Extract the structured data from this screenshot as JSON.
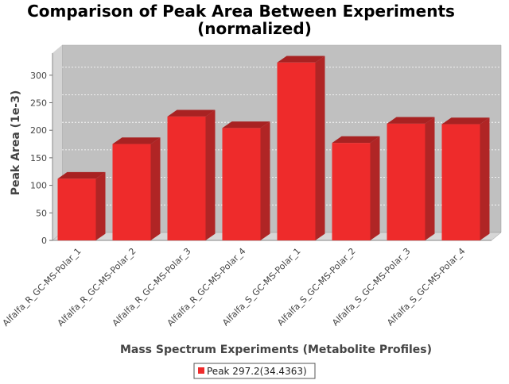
{
  "chart_data": {
    "type": "bar",
    "title": "Comparison of Peak Area Between Experiments",
    "subtitle": "(normalized)",
    "xlabel": "Mass Spectrum Experiments (Metabolite Profiles)",
    "ylabel": "Peak Area (1e-3)",
    "ylim": [
      0,
      340
    ],
    "yticks": [
      0,
      50,
      100,
      150,
      200,
      250,
      300
    ],
    "grid": true,
    "legend_position": "bottom",
    "categories": [
      "Alfalfa_R_GC-MS-Polar_1",
      "Alfalfa_R_GC-MS-Polar_2",
      "Alfalfa_R_GC-MS-Polar_3",
      "Alfalfa_R_GC-MS-Polar_4",
      "Alfalfa_S_GC-MS-Polar_1",
      "Alfalfa_S_GC-MS-Polar_2",
      "Alfalfa_S_GC-MS-Polar_3",
      "Alfalfa_S_GC-MS-Polar_4"
    ],
    "series": [
      {
        "name": "Peak 297.2(34.4363)",
        "color": "#ee2b2b",
        "values": [
          112,
          175,
          225,
          204,
          323,
          177,
          212,
          211
        ]
      }
    ]
  }
}
